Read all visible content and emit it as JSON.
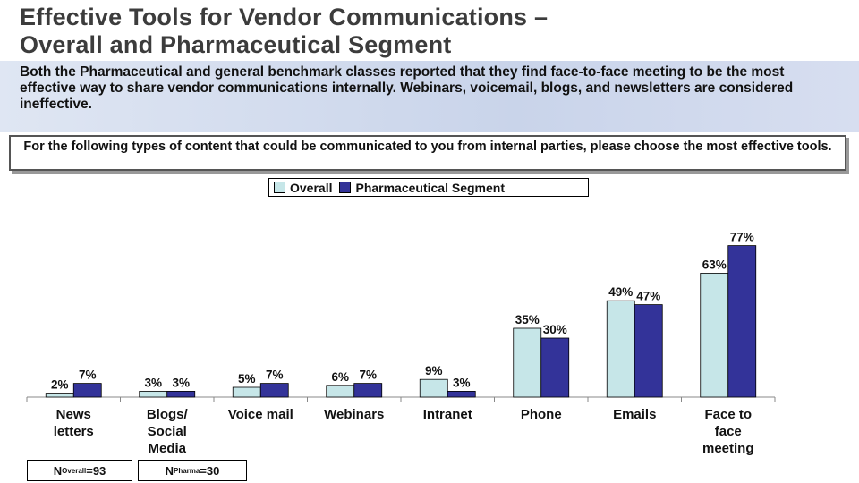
{
  "title_line1": "Effective Tools for Vendor Communications –",
  "title_line2": "Overall and Pharmaceutical Segment",
  "summary": "Both the Pharmaceutical and general benchmark classes reported that they find face-to-face meeting to be the most effective way to share vendor communications internally. Webinars, voicemail, blogs, and newsletters are considered ineffective.",
  "question": "For the following types of content that could be communicated to you from internal parties, please choose the most effective tools.",
  "colors": {
    "overall": "#c6e6e8",
    "pharma": "#333399"
  },
  "n_overall": {
    "prefix": "N ",
    "sub": "Overall",
    "suffix": "=93"
  },
  "n_pharma": {
    "prefix": "N ",
    "sub": "Pharma",
    "suffix": "=30"
  },
  "chart_data": {
    "type": "bar",
    "categories": [
      [
        "News",
        "letters"
      ],
      [
        "Blogs/",
        "Social",
        "Media"
      ],
      [
        "Voice mail"
      ],
      [
        "Webinars"
      ],
      [
        "Intranet"
      ],
      [
        "Phone"
      ],
      [
        "Emails"
      ],
      [
        "Face to",
        "face",
        "meeting"
      ]
    ],
    "series": [
      {
        "name": "Overall",
        "values": [
          2,
          3,
          5,
          6,
          9,
          35,
          49,
          63
        ],
        "labels": [
          "2%",
          "3%",
          "5%",
          "6%",
          "9%",
          "35%",
          "49%",
          "63%"
        ]
      },
      {
        "name": "Pharmaceutical Segment",
        "values": [
          7,
          3,
          7,
          7,
          3,
          30,
          47,
          77
        ],
        "labels": [
          "7%",
          "3%",
          "7%",
          "7%",
          "3%",
          "30%",
          "47%",
          "77%"
        ]
      }
    ],
    "ylim": [
      0,
      85
    ],
    "legend": "top-center",
    "grid": false
  }
}
